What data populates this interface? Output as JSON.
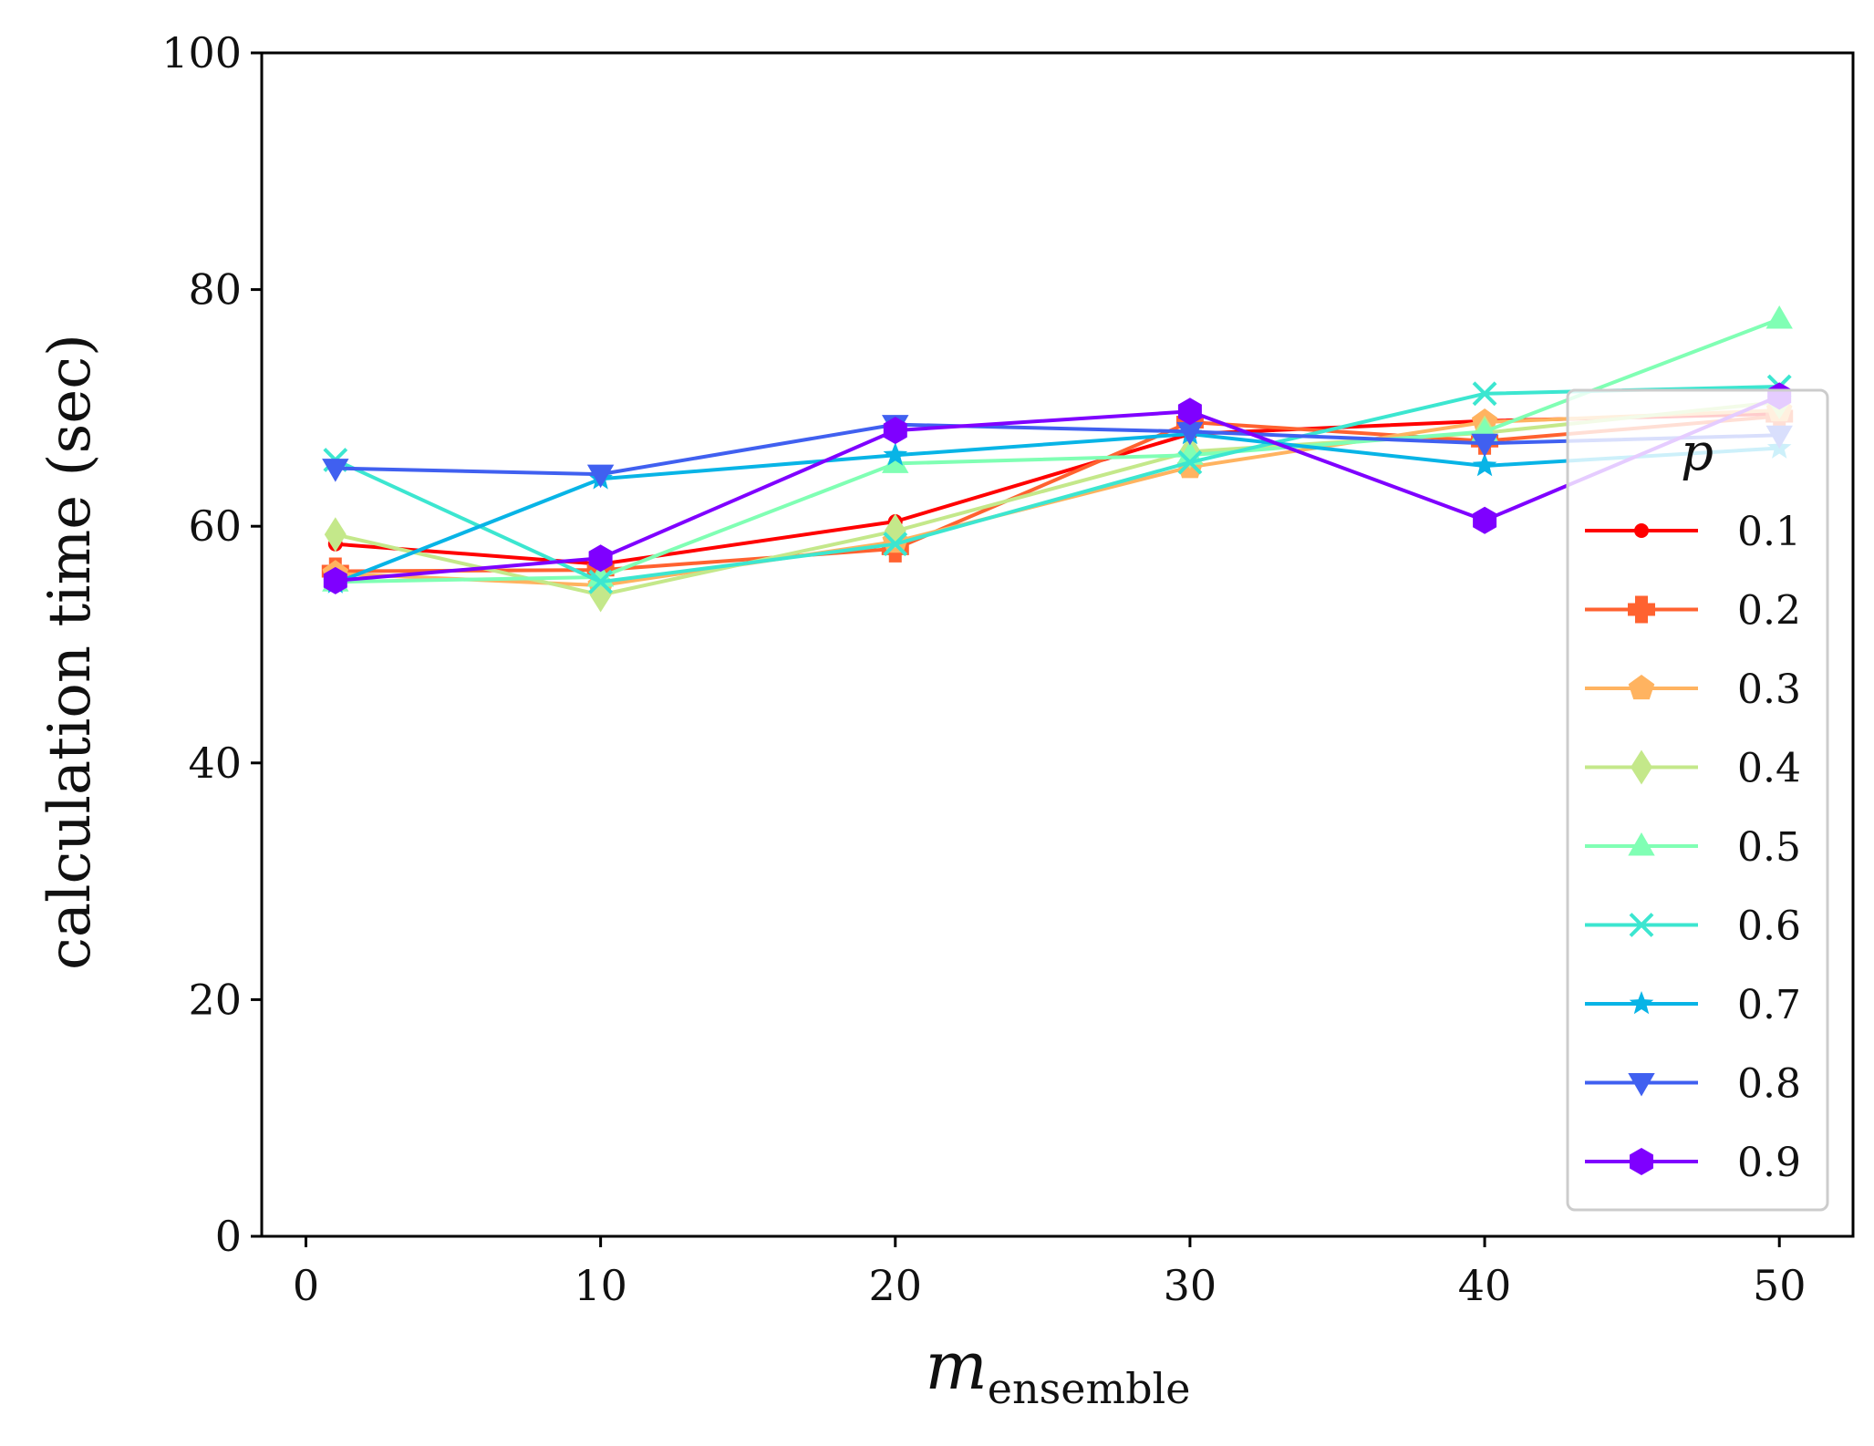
{
  "chart_data": {
    "type": "line",
    "title": "",
    "xlabel_main": "m",
    "xlabel_sub": "ensemble",
    "ylabel": "calculation time (sec)",
    "x": [
      1,
      10,
      20,
      30,
      40,
      50
    ],
    "xlim": [
      -1.5,
      52.5
    ],
    "ylim": [
      0,
      100
    ],
    "xticks": [
      0,
      10,
      20,
      30,
      40,
      50
    ],
    "yticks": [
      0,
      20,
      40,
      60,
      80,
      100
    ],
    "grid": false,
    "legend": {
      "title": "p",
      "position": "right"
    },
    "series": [
      {
        "name": "0.1",
        "color": "#ff0000",
        "marker": "circle",
        "values": [
          58.5,
          56.8,
          60.4,
          67.8,
          68.9,
          69.5
        ]
      },
      {
        "name": "0.2",
        "color": "#ff6230",
        "marker": "plus",
        "values": [
          56.2,
          56.3,
          58.1,
          68.8,
          67.2,
          69.3
        ]
      },
      {
        "name": "0.3",
        "color": "#ffb360",
        "marker": "pentagon",
        "values": [
          56.0,
          55.0,
          58.7,
          65.0,
          68.8,
          69.8
        ]
      },
      {
        "name": "0.4",
        "color": "#c4e88a",
        "marker": "diamond",
        "values": [
          59.3,
          54.2,
          59.6,
          66.3,
          67.9,
          70.5
        ]
      },
      {
        "name": "0.5",
        "color": "#80ffb4",
        "marker": "triangle-up",
        "values": [
          55.3,
          55.7,
          65.3,
          66.0,
          68.0,
          77.5
        ]
      },
      {
        "name": "0.6",
        "color": "#3ce6d0",
        "marker": "x",
        "values": [
          65.6,
          55.3,
          58.5,
          65.4,
          71.2,
          71.8
        ]
      },
      {
        "name": "0.7",
        "color": "#08b4e6",
        "marker": "star",
        "values": [
          55.2,
          64.0,
          66.0,
          67.8,
          65.1,
          66.6
        ]
      },
      {
        "name": "0.8",
        "color": "#4060f0",
        "marker": "triangle-down",
        "values": [
          64.9,
          64.4,
          68.6,
          68.0,
          67.0,
          67.7
        ]
      },
      {
        "name": "0.9",
        "color": "#7f00ff",
        "marker": "hexagon",
        "values": [
          55.4,
          57.3,
          68.1,
          69.7,
          60.5,
          71.0
        ]
      }
    ]
  }
}
